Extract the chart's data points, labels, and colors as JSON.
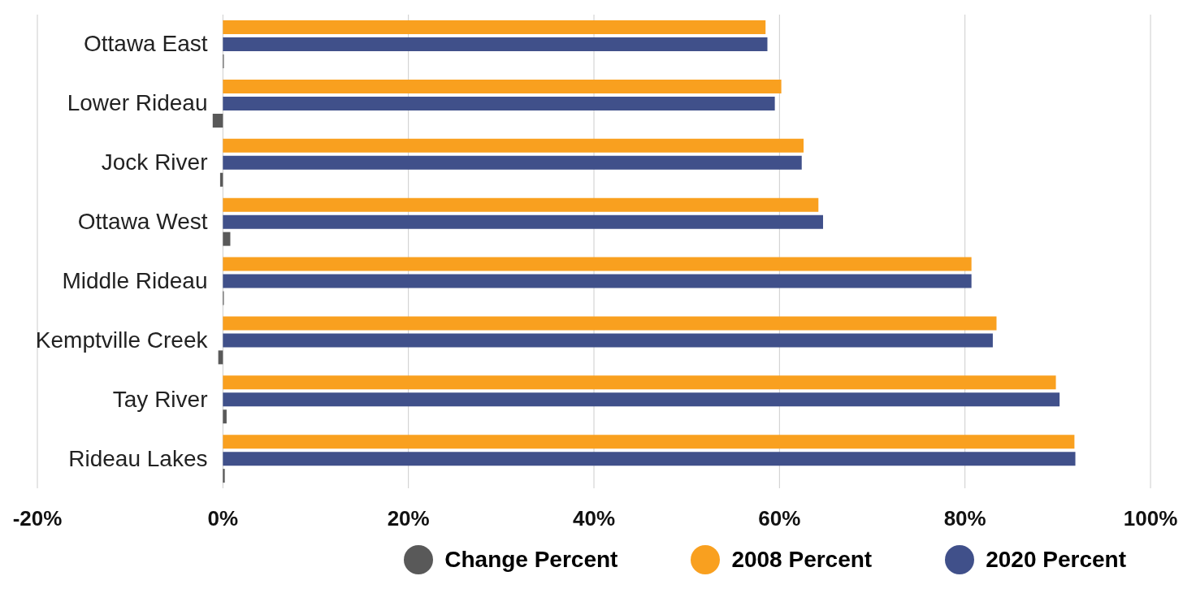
{
  "chart_data": {
    "type": "bar",
    "orientation": "horizontal",
    "categories": [
      "Ottawa East",
      "Lower Rideau",
      "Jock River",
      "Ottawa West",
      "Middle Rideau",
      "Kemptville Creek",
      "Tay River",
      "Rideau Lakes"
    ],
    "series": [
      {
        "name": "2008 Percent",
        "color": "#f9a01f",
        "values": [
          58.5,
          60.2,
          62.6,
          64.2,
          80.7,
          83.4,
          89.8,
          91.8
        ]
      },
      {
        "name": "2020 Percent",
        "color": "#40508a",
        "values": [
          58.7,
          59.5,
          62.4,
          64.7,
          80.7,
          83.0,
          90.2,
          91.9
        ]
      },
      {
        "name": "Change Percent",
        "color": "#595959",
        "values": [
          0.1,
          -1.1,
          -0.3,
          0.8,
          0.1,
          -0.5,
          0.4,
          0.2
        ]
      }
    ],
    "xlim": [
      -20,
      100
    ],
    "xticks": [
      {
        "value": -20,
        "label": "-20%"
      },
      {
        "value": 0,
        "label": "0%"
      },
      {
        "value": 20,
        "label": "20%"
      },
      {
        "value": 40,
        "label": "40%"
      },
      {
        "value": 60,
        "label": "60%"
      },
      {
        "value": 80,
        "label": "80%"
      },
      {
        "value": 100,
        "label": "100%"
      }
    ],
    "grid": "x",
    "legend": "bottom"
  }
}
